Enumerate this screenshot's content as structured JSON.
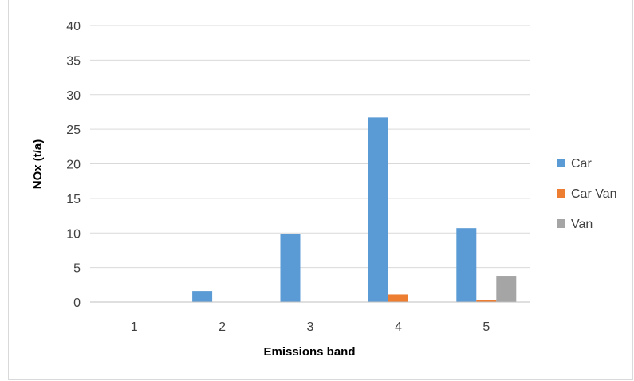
{
  "chart_data": {
    "type": "bar",
    "title": "",
    "xlabel": "Emissions band",
    "ylabel": "NOx (t/a)",
    "categories": [
      "1",
      "2",
      "3",
      "4",
      "5"
    ],
    "ylim": [
      0,
      40
    ],
    "yticks": [
      "0",
      "5",
      "10",
      "15",
      "20",
      "25",
      "30",
      "35",
      "40"
    ],
    "grid": true,
    "legend_position": "right",
    "series": [
      {
        "name": "Car",
        "color": "#5b9bd5",
        "values": [
          0,
          1.6,
          9.9,
          26.7,
          10.7
        ]
      },
      {
        "name": "Car Van",
        "color": "#ed7d31",
        "values": [
          0,
          0,
          0,
          1.1,
          0.3
        ]
      },
      {
        "name": "Van",
        "color": "#a5a5a5",
        "values": [
          0,
          0,
          0,
          0,
          3.8
        ]
      }
    ]
  }
}
